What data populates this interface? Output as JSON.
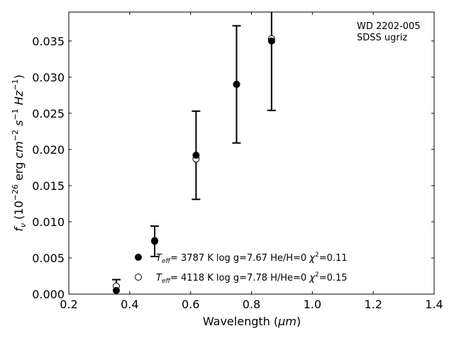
{
  "chart_data": {
    "type": "scatter",
    "xlabel_main": "Wavelength (",
    "xlabel_unit": "μm",
    "xlabel_close": ")",
    "ylabel": {
      "f": "f",
      "nu": "ν",
      "open": " (10",
      "exp1": "−26",
      "mid1": " erg ",
      "cm": "cm",
      "exp2": "−2",
      "mid2": " s",
      "exp3": "−1",
      "mid3": " ",
      "hz": "Hz",
      "exp4": "−1",
      "close": ")"
    },
    "xlim": [
      0.2,
      1.4
    ],
    "ylim": [
      0.0,
      0.039
    ],
    "xticks": [
      0.2,
      0.4,
      0.6,
      0.8,
      1.0,
      1.2,
      1.4
    ],
    "xtick_labels": [
      "0.2",
      "0.4",
      "0.6",
      "0.8",
      "1.0",
      "1.2",
      "1.4"
    ],
    "yticks": [
      0.0,
      0.005,
      0.01,
      0.015,
      0.02,
      0.025,
      0.03,
      0.035
    ],
    "ytick_labels": [
      "0.000",
      "0.005",
      "0.010",
      "0.015",
      "0.020",
      "0.025",
      "0.030",
      "0.035"
    ],
    "annotations": [
      "WD 2202-005",
      "SDSS ugriz"
    ],
    "observed": {
      "x": [
        0.356,
        0.482,
        0.618,
        0.751,
        0.866
      ],
      "y": [
        0.0007,
        0.0073,
        0.0192,
        0.029,
        0.035
      ],
      "yerr": [
        0.0013,
        0.0021,
        0.0061,
        0.0081,
        0.0096
      ]
    },
    "series": [
      {
        "marker": "filled-circle",
        "x": [
          0.356,
          0.482,
          0.618,
          0.751,
          0.866
        ],
        "y": [
          0.0005,
          0.0073,
          0.0192,
          0.029,
          0.035
        ],
        "legend": {
          "T": "T",
          "sub": "eff",
          "text": "=  3787 K  log g=7.67  He/H=0  ",
          "chi": "χ",
          "chi_exp": "2",
          "chi_val": "=0.11"
        }
      },
      {
        "marker": "open-circle",
        "x": [
          0.356,
          0.482,
          0.618,
          0.751,
          0.866
        ],
        "y": [
          0.0011,
          0.0074,
          0.0187,
          0.029,
          0.0353
        ],
        "legend": {
          "T": "T",
          "sub": "eff",
          "text": "=  4118 K  log g=7.78  H/He=0  ",
          "chi": "χ",
          "chi_exp": "2",
          "chi_val": "=0.15"
        }
      }
    ],
    "grid": false,
    "legend_position": "lower-center"
  }
}
